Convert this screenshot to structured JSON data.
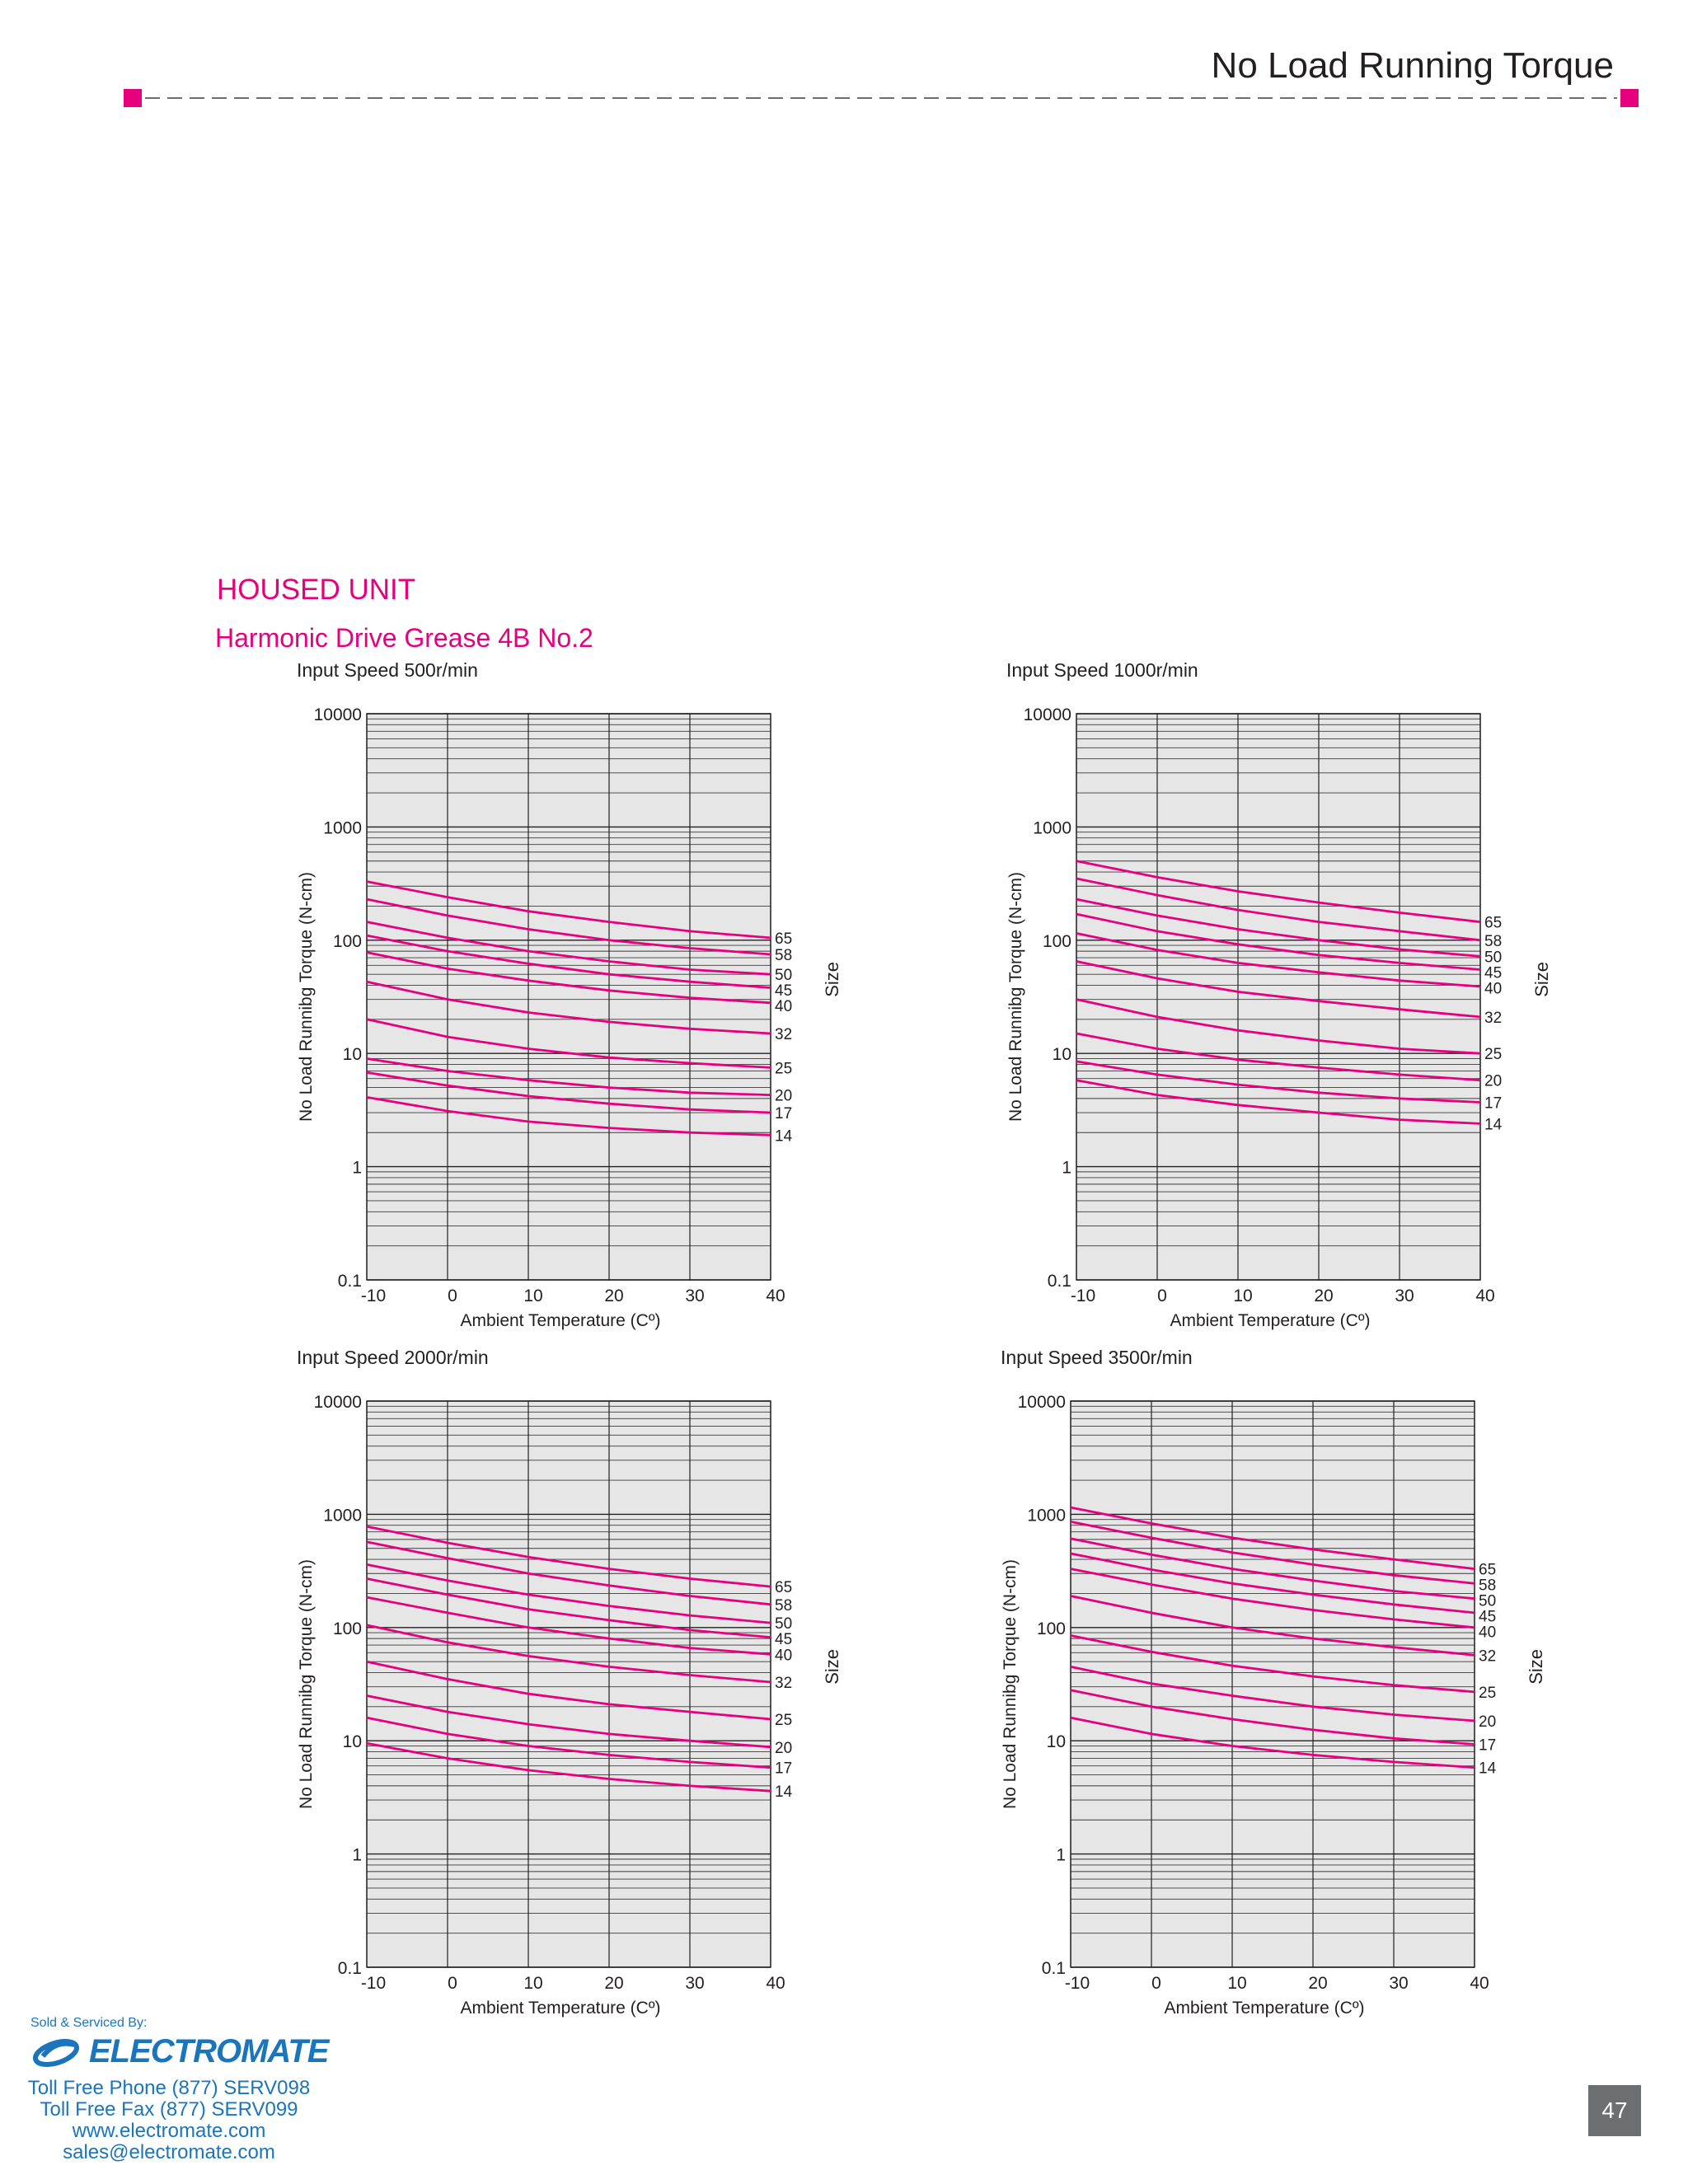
{
  "header": {
    "title": "No Load Running Torque"
  },
  "section": {
    "title": "HOUSED UNIT",
    "subtitle": "Harmonic Drive Grease 4B No.2"
  },
  "colors": {
    "accent": "#e6007e",
    "plot_bg": "#e6e6e7",
    "brand_blue": "#1a75bb"
  },
  "chart_data": [
    {
      "type": "line",
      "title": "Input Speed 500r/min",
      "xlabel": "Ambient Temperature (Cº)",
      "ylabel": "No Load Runnibg Torque  (N-cm)",
      "legend_title": "Size",
      "xlim": [
        -10,
        40
      ],
      "ylim": [
        0.1,
        10000
      ],
      "yscale": "log",
      "x": [
        -10,
        0,
        10,
        20,
        30,
        40
      ],
      "xticks": [
        "-10",
        "0",
        "10",
        "20",
        "30",
        "40"
      ],
      "yticks": [
        "10000",
        "1000",
        "100",
        "10",
        "1",
        "0.1"
      ],
      "series": [
        {
          "name": "65",
          "values": [
            330,
            240,
            180,
            145,
            120,
            105
          ]
        },
        {
          "name": "58",
          "values": [
            230,
            165,
            125,
            100,
            85,
            75
          ]
        },
        {
          "name": "50",
          "values": [
            145,
            105,
            80,
            65,
            55,
            50
          ]
        },
        {
          "name": "45",
          "values": [
            110,
            80,
            62,
            50,
            43,
            38
          ]
        },
        {
          "name": "40",
          "values": [
            78,
            56,
            44,
            36,
            31,
            28
          ]
        },
        {
          "name": "32",
          "values": [
            43,
            30,
            23,
            19,
            16.5,
            15
          ]
        },
        {
          "name": "25",
          "values": [
            20,
            14,
            11,
            9.2,
            8.2,
            7.5
          ]
        },
        {
          "name": "20",
          "values": [
            9,
            7,
            5.8,
            5,
            4.5,
            4.3
          ]
        },
        {
          "name": "17",
          "values": [
            6.8,
            5.2,
            4.2,
            3.6,
            3.2,
            3
          ]
        },
        {
          "name": "14",
          "values": [
            4.1,
            3.1,
            2.5,
            2.2,
            2,
            1.9
          ]
        }
      ]
    },
    {
      "type": "line",
      "title": "Input Speed 1000r/min",
      "xlabel": "Ambient Temperature (Cº)",
      "ylabel": "No Load Runnibg Torque  (N-cm)",
      "legend_title": "Size",
      "xlim": [
        -10,
        40
      ],
      "ylim": [
        0.1,
        10000
      ],
      "yscale": "log",
      "x": [
        -10,
        0,
        10,
        20,
        30,
        40
      ],
      "xticks": [
        "-10",
        "0",
        "10",
        "20",
        "30",
        "40"
      ],
      "yticks": [
        "10000",
        "1000",
        "100",
        "10",
        "1",
        "0.1"
      ],
      "series": [
        {
          "name": "65",
          "values": [
            500,
            360,
            270,
            215,
            175,
            145
          ]
        },
        {
          "name": "58",
          "values": [
            350,
            250,
            185,
            145,
            120,
            100
          ]
        },
        {
          "name": "50",
          "values": [
            230,
            165,
            125,
            100,
            83,
            72
          ]
        },
        {
          "name": "45",
          "values": [
            170,
            120,
            92,
            74,
            63,
            55
          ]
        },
        {
          "name": "40",
          "values": [
            115,
            82,
            63,
            52,
            44,
            39
          ]
        },
        {
          "name": "32",
          "values": [
            65,
            46,
            35,
            29,
            24.5,
            21
          ]
        },
        {
          "name": "25",
          "values": [
            30,
            21,
            16,
            13,
            11,
            10
          ]
        },
        {
          "name": "20",
          "values": [
            15,
            11,
            8.8,
            7.5,
            6.5,
            5.8
          ]
        },
        {
          "name": "17",
          "values": [
            8.5,
            6.5,
            5.3,
            4.5,
            4,
            3.7
          ]
        },
        {
          "name": "14",
          "values": [
            5.8,
            4.3,
            3.5,
            3,
            2.6,
            2.4
          ]
        }
      ]
    },
    {
      "type": "line",
      "title": "Input Speed 2000r/min",
      "xlabel": "Ambient Temperature (Cº)",
      "ylabel": "No Load Runnibg Torque  (N-cm)",
      "legend_title": "Size",
      "xlim": [
        -10,
        40
      ],
      "ylim": [
        0.1,
        10000
      ],
      "yscale": "log",
      "x": [
        -10,
        0,
        10,
        20,
        30,
        40
      ],
      "xticks": [
        "-10",
        "0",
        "10",
        "20",
        "30",
        "40"
      ],
      "yticks": [
        "10000",
        "1000",
        "100",
        "10",
        "1",
        "0.1"
      ],
      "series": [
        {
          "name": "65",
          "values": [
            780,
            560,
            420,
            330,
            270,
            230
          ]
        },
        {
          "name": "58",
          "values": [
            570,
            410,
            300,
            235,
            190,
            160
          ]
        },
        {
          "name": "50",
          "values": [
            360,
            260,
            195,
            155,
            128,
            110
          ]
        },
        {
          "name": "45",
          "values": [
            270,
            195,
            145,
            116,
            95,
            82
          ]
        },
        {
          "name": "40",
          "values": [
            185,
            135,
            100,
            80,
            66,
            58
          ]
        },
        {
          "name": "32",
          "values": [
            105,
            74,
            56,
            45,
            38,
            33
          ]
        },
        {
          "name": "25",
          "values": [
            50,
            35,
            26,
            21,
            18,
            15.5
          ]
        },
        {
          "name": "20",
          "values": [
            25,
            18,
            14,
            11.5,
            10,
            8.8
          ]
        },
        {
          "name": "17",
          "values": [
            16,
            11.5,
            9,
            7.5,
            6.5,
            5.8
          ]
        },
        {
          "name": "14",
          "values": [
            9.5,
            7,
            5.5,
            4.6,
            4,
            3.6
          ]
        }
      ]
    },
    {
      "type": "line",
      "title": "Input Speed 3500r/min",
      "xlabel": "Ambient Temperature (Cº)",
      "ylabel": "No Load Runnibg Torque  (N-cm)",
      "legend_title": "Size",
      "xlim": [
        -10,
        40
      ],
      "ylim": [
        0.1,
        10000
      ],
      "yscale": "log",
      "x": [
        -10,
        0,
        10,
        20,
        30,
        40
      ],
      "xticks": [
        "-10",
        "0",
        "10",
        "20",
        "30",
        "40"
      ],
      "yticks": [
        "10000",
        "1000",
        "100",
        "10",
        "1",
        "0.1"
      ],
      "series": [
        {
          "name": "65",
          "values": [
            1150,
            830,
            620,
            490,
            400,
            330
          ]
        },
        {
          "name": "58",
          "values": [
            860,
            620,
            460,
            360,
            290,
            245
          ]
        },
        {
          "name": "50",
          "values": [
            610,
            440,
            330,
            260,
            210,
            180
          ]
        },
        {
          "name": "45",
          "values": [
            450,
            325,
            245,
            195,
            160,
            135
          ]
        },
        {
          "name": "40",
          "values": [
            330,
            240,
            180,
            143,
            118,
            100
          ]
        },
        {
          "name": "32",
          "values": [
            190,
            135,
            100,
            80,
            67,
            57
          ]
        },
        {
          "name": "25",
          "values": [
            85,
            61,
            46,
            37,
            31,
            27
          ]
        },
        {
          "name": "20",
          "values": [
            45,
            32,
            25,
            20,
            17,
            15
          ]
        },
        {
          "name": "17",
          "values": [
            28,
            20,
            15.5,
            12.5,
            10.5,
            9.3
          ]
        },
        {
          "name": "14",
          "values": [
            16,
            11.5,
            9,
            7.5,
            6.5,
            5.8
          ]
        }
      ]
    }
  ],
  "footer": {
    "sold_by": "Sold & Serviced By:",
    "brand": "ELECTROMATE",
    "phone": "Toll Free Phone  (877) SERV098",
    "fax": "Toll Free Fax  (877) SERV099",
    "web": "www.electromate.com",
    "email": "sales@electromate.com",
    "page_number": "47"
  }
}
